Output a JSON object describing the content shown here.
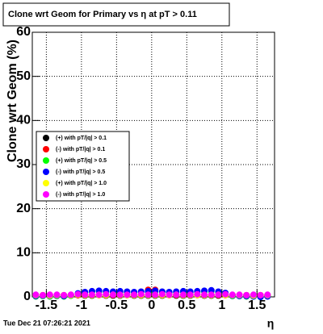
{
  "chart_data": {
    "type": "scatter",
    "title": "Clone wrt Geom for Primary vs  η at pT > 0.11",
    "y_label": "Clone wrt Geom (%)",
    "x_label": "η",
    "footer": "Tue Dec 21 07:26:21 2021",
    "x": [
      -1.65,
      -1.55,
      -1.45,
      -1.35,
      -1.25,
      -1.15,
      -1.05,
      -0.95,
      -0.85,
      -0.75,
      -0.65,
      -0.55,
      -0.45,
      -0.35,
      -0.25,
      -0.15,
      -0.05,
      0.05,
      0.15,
      0.25,
      0.35,
      0.45,
      0.55,
      0.65,
      0.75,
      0.85,
      0.95,
      1.05,
      1.15,
      1.25,
      1.35,
      1.45,
      1.55,
      1.65
    ],
    "series": [
      {
        "name": "(+) with pT/|q| > 0.1",
        "color": "#000000",
        "values": [
          0.3,
          0.3,
          0.2,
          0.3,
          0.3,
          0.3,
          0.4,
          0.3,
          0.3,
          0.4,
          0.3,
          0.3,
          0.3,
          0.4,
          0.3,
          0.3,
          0.3,
          0.3,
          0.3,
          0.4,
          0.3,
          0.3,
          0.3,
          0.4,
          0.3,
          0.3,
          0.3,
          0.4,
          0.3,
          0.3,
          0.3,
          0.2,
          0.3,
          0.3
        ]
      },
      {
        "name": "(-) with pT/|q| > 0.1",
        "color": "#ff0000",
        "values": [
          0.4,
          0.4,
          0.4,
          0.4,
          0.4,
          0.4,
          0.4,
          0.4,
          0.4,
          0.4,
          0.4,
          0.4,
          0.4,
          0.4,
          0.4,
          0.4,
          1.6,
          1.6,
          0.4,
          0.4,
          0.4,
          0.4,
          0.4,
          0.4,
          0.4,
          0.4,
          0.4,
          0.4,
          0.4,
          0.4,
          0.4,
          0.4,
          0.4,
          0.4
        ]
      },
      {
        "name": "(+) with pT/|q| > 0.5",
        "color": "#00ff00",
        "values": [
          0.1,
          0.2,
          0.1,
          0.2,
          0.1,
          0.3,
          0.7,
          1.0,
          1.2,
          1.3,
          1.1,
          1.0,
          1.1,
          1.0,
          1.0,
          1.1,
          1.2,
          1.2,
          1.1,
          1.0,
          1.0,
          1.1,
          1.0,
          1.1,
          1.2,
          1.3,
          1.0,
          0.8,
          0.2,
          0.2,
          0.1,
          0.1,
          0.0,
          0.2
        ]
      },
      {
        "name": "(-) with pT/|q| > 0.5",
        "color": "#0000ff",
        "values": [
          0.2,
          0.3,
          0.2,
          0.3,
          0.2,
          0.4,
          0.8,
          1.1,
          1.3,
          1.4,
          1.3,
          1.2,
          1.3,
          1.2,
          1.1,
          1.2,
          1.3,
          1.4,
          1.2,
          1.1,
          1.2,
          1.3,
          1.2,
          1.3,
          1.4,
          1.5,
          1.2,
          0.9,
          0.3,
          0.2,
          0.2,
          0.1,
          0.0,
          0.1
        ]
      },
      {
        "name": "(+) with pT/|q| > 1.0",
        "color": "#ffff00",
        "values": [
          0.4,
          0.4,
          0.3,
          0.4,
          0.4,
          0.4,
          0.5,
          0.4,
          0.4,
          0.4,
          0.4,
          0.5,
          0.4,
          0.4,
          0.4,
          0.4,
          0.4,
          0.4,
          0.4,
          0.4,
          0.5,
          0.4,
          0.4,
          0.4,
          0.4,
          0.4,
          0.5,
          0.4,
          0.4,
          0.4,
          0.4,
          0.3,
          0.4,
          0.4
        ]
      },
      {
        "name": "(-) with pT/|q| > 1.0",
        "color": "#ff00ff",
        "values": [
          0.5,
          0.4,
          0.5,
          0.5,
          0.4,
          0.5,
          0.6,
          0.5,
          0.5,
          0.5,
          0.6,
          0.5,
          0.5,
          0.5,
          0.5,
          0.6,
          0.5,
          0.5,
          0.6,
          0.5,
          0.5,
          0.5,
          0.5,
          0.6,
          0.5,
          0.5,
          0.5,
          0.6,
          0.5,
          0.5,
          0.4,
          0.5,
          0.4,
          0.5
        ]
      }
    ],
    "xlim": [
      -1.7,
      1.75
    ],
    "ylim": [
      0,
      60
    ],
    "xticks": [
      -1.5,
      -1,
      -0.5,
      0,
      0.5,
      1,
      1.5
    ],
    "yticks": [
      0,
      10,
      20,
      30,
      40,
      50,
      60
    ],
    "grid": true
  }
}
